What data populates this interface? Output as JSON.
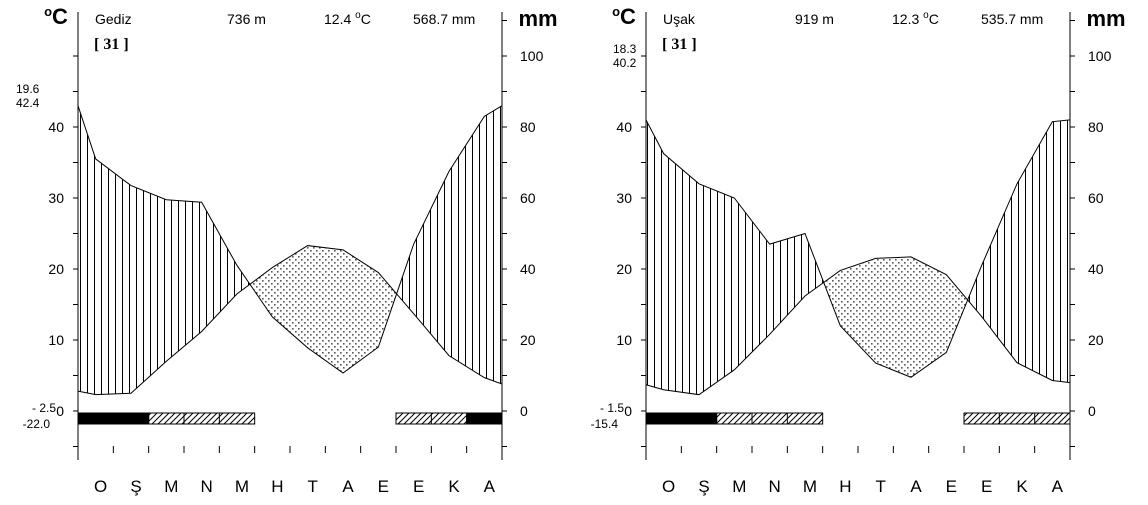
{
  "chart_data": [
    {
      "type": "climate-diagram",
      "station": "Gediz",
      "altitude": "736 m",
      "mean_temp_label": "12.4 ",
      "mean_temp_unit": "C",
      "annual_precip": "568.7 mm",
      "ref_label": "[ 31 ]",
      "left_unit": "C",
      "right_unit": "mm",
      "top_extreme": [
        "19.6",
        "42.4"
      ],
      "bottom_extreme": [
        "- 2.5",
        "-22.0"
      ],
      "months": [
        "O",
        "Ş",
        "M",
        "N",
        "M",
        "H",
        "T",
        "A",
        "E",
        "E",
        "K",
        "A"
      ],
      "temp_axis": {
        "ticks": [
          0,
          10,
          20,
          30,
          40
        ],
        "labels": [
          "0",
          "10",
          "20",
          "30",
          "40"
        ],
        "range": [
          0,
          50
        ]
      },
      "precip_axis": {
        "ticks": [
          0,
          20,
          40,
          60,
          80,
          100
        ],
        "labels": [
          "0",
          "20",
          "40",
          "60",
          "80",
          "100"
        ],
        "range": [
          0,
          100
        ]
      },
      "x": [
        0,
        0.5,
        1.5,
        2.5,
        3.5,
        4.5,
        5.5,
        6.5,
        7.5,
        8.5,
        9.5,
        10.5,
        11.5,
        12
      ],
      "temperature": [
        2.8,
        2.3,
        2.5,
        7.0,
        11.2,
        16.5,
        20.2,
        23.3,
        22.7,
        19.5,
        13.7,
        7.8,
        4.7,
        3.8
      ],
      "precipitation": [
        86.0,
        71.0,
        63.5,
        59.5,
        58.8,
        41.0,
        26.5,
        17.8,
        10.7,
        18.0,
        47.0,
        67.5,
        83.0,
        86.0
      ],
      "frost_months": {
        "certain": [
          [
            0,
            2
          ],
          [
            11,
            12
          ]
        ],
        "probable": [
          [
            2,
            5
          ],
          [
            9,
            11
          ]
        ]
      }
    },
    {
      "type": "climate-diagram",
      "station": "Uşak",
      "altitude": "919 m",
      "mean_temp_label": "12.3 ",
      "mean_temp_unit": "C",
      "annual_precip": "535.7 mm",
      "ref_label": "[ 31 ]",
      "left_unit": "C",
      "right_unit": "mm",
      "top_extreme": [
        "18.3",
        "40.2"
      ],
      "bottom_extreme": [
        "- 1.5",
        "-15.4"
      ],
      "months": [
        "O",
        "Ş",
        "M",
        "N",
        "M",
        "H",
        "T",
        "A",
        "E",
        "E",
        "K",
        "A"
      ],
      "temp_axis": {
        "ticks": [
          0,
          10,
          20,
          30,
          40
        ],
        "labels": [
          "0",
          "10",
          "20",
          "30",
          "40"
        ],
        "range": [
          0,
          50
        ]
      },
      "precip_axis": {
        "ticks": [
          0,
          20,
          40,
          60,
          80,
          100
        ],
        "labels": [
          "0",
          "20",
          "40",
          "60",
          "80",
          "100"
        ],
        "range": [
          0,
          100
        ]
      },
      "x": [
        0,
        0.5,
        1.5,
        2.5,
        3.5,
        4.5,
        5.5,
        6.5,
        7.5,
        8.5,
        9.5,
        10.5,
        11.5,
        12
      ],
      "temperature": [
        3.7,
        3.0,
        2.3,
        5.8,
        10.8,
        16.2,
        19.8,
        21.5,
        21.7,
        19.2,
        13.3,
        6.8,
        4.3,
        4.0
      ],
      "precipitation": [
        82.0,
        72.5,
        64.0,
        60.0,
        47.0,
        50.0,
        24.0,
        13.5,
        9.5,
        16.5,
        41.0,
        64.0,
        81.5,
        82.0
      ],
      "frost_months": {
        "certain": [
          [
            0,
            2
          ]
        ],
        "probable": [
          [
            2,
            5
          ],
          [
            9,
            12
          ]
        ]
      }
    }
  ]
}
